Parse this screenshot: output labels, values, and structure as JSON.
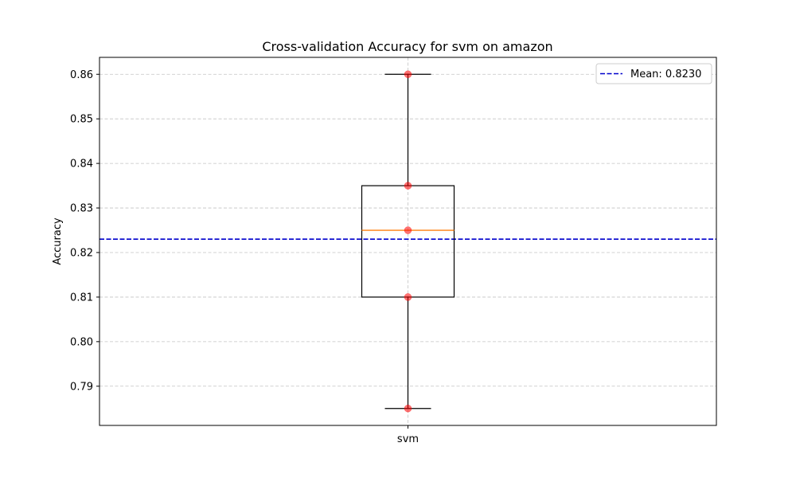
{
  "chart_data": {
    "type": "box",
    "title": "Cross-validation Accuracy for svm on amazon",
    "xlabel": "",
    "ylabel": "Accuracy",
    "categories": [
      "svm"
    ],
    "ylim": [
      0.7812,
      0.8638
    ],
    "yticks": [
      0.79,
      0.8,
      0.81,
      0.82,
      0.83,
      0.84,
      0.85,
      0.86
    ],
    "ytick_labels": [
      "0.79",
      "0.80",
      "0.81",
      "0.82",
      "0.83",
      "0.84",
      "0.85",
      "0.86"
    ],
    "grid": true,
    "box": {
      "category": "svm",
      "whisker_low": 0.785,
      "q1": 0.81,
      "median": 0.825,
      "q3": 0.835,
      "whisker_high": 0.86
    },
    "points": [
      0.785,
      0.81,
      0.825,
      0.835,
      0.86
    ],
    "mean_line": {
      "value": 0.823,
      "label": "Mean: 0.8230",
      "style": "dashed"
    },
    "legend": {
      "position": "top-right",
      "entries": [
        "Mean: 0.8230"
      ]
    },
    "colors": {
      "box": "#000000",
      "median": "#ff7f0e",
      "points": "#ff0000",
      "mean_line": "#0000cc",
      "grid": "#b0b0b0"
    }
  }
}
